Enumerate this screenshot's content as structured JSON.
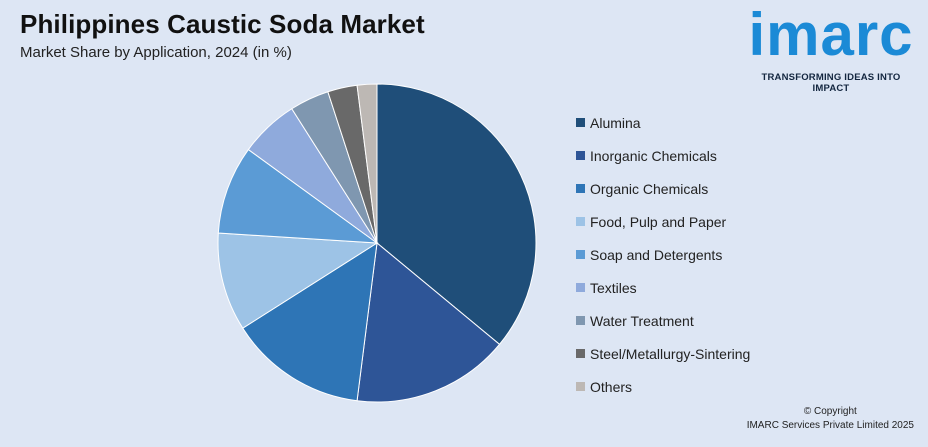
{
  "header": {
    "title": "Philippines Caustic Soda Market",
    "subtitle": "Market Share by Application, 2024 (in %)"
  },
  "logo": {
    "wordmark": "imarc",
    "tagline": "TRANSFORMING IDEAS INTO IMPACT",
    "color": "#1b8ad6"
  },
  "chart_data": {
    "type": "pie",
    "title": "Philippines Caustic Soda Market",
    "subtitle": "Market Share by Application, 2024 (in %)",
    "legend_position": "right",
    "start_angle_deg": 0,
    "direction": "clockwise",
    "series": [
      {
        "values": [
          {
            "label": "Alumina",
            "value": 36,
            "color": "#1f4e79"
          },
          {
            "label": "Inorganic Chemicals",
            "value": 16,
            "color": "#2e5597"
          },
          {
            "label": "Organic Chemicals",
            "value": 14,
            "color": "#2e75b6"
          },
          {
            "label": "Food, Pulp and Paper",
            "value": 10,
            "color": "#9dc3e6"
          },
          {
            "label": "Soap and Detergents",
            "value": 9,
            "color": "#5b9bd5"
          },
          {
            "label": "Textiles",
            "value": 6,
            "color": "#8faadc"
          },
          {
            "label": "Water Treatment",
            "value": 4,
            "color": "#7f97b0"
          },
          {
            "label": "Steel/Metallurgy-Sintering",
            "value": 3,
            "color": "#696969"
          },
          {
            "label": "Others",
            "value": 2,
            "color": "#bdb8b4"
          }
        ]
      }
    ]
  },
  "footer": {
    "copyright": "© Copyright",
    "company": "IMARC Services Private Limited 2025"
  }
}
